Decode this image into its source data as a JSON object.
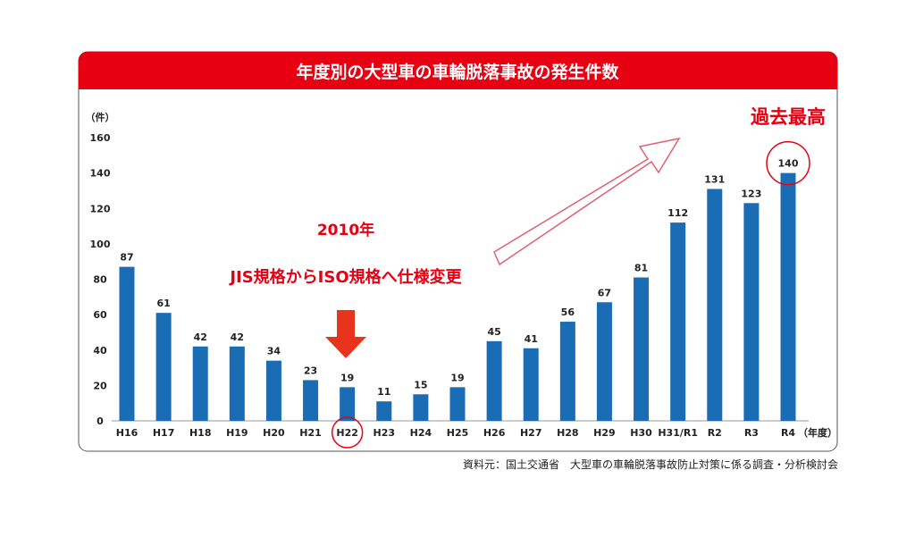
{
  "chart_data": {
    "type": "bar",
    "title": "年度別の大型車の車輪脱落事故の発生件数",
    "ylabel": "（件）",
    "xlabel": "（年度）",
    "ylim": [
      0,
      160
    ],
    "yticks": [
      0,
      20,
      40,
      60,
      80,
      100,
      120,
      140,
      160
    ],
    "grid": false,
    "categories": [
      "H16",
      "H17",
      "H18",
      "H19",
      "H20",
      "H21",
      "H22",
      "H23",
      "H24",
      "H25",
      "H26",
      "H27",
      "H28",
      "H29",
      "H30",
      "H31/R1",
      "R2",
      "R3",
      "R4"
    ],
    "values": [
      87,
      61,
      42,
      42,
      34,
      23,
      19,
      11,
      15,
      19,
      45,
      41,
      56,
      67,
      81,
      112,
      131,
      123,
      140
    ],
    "bar_color": "#1a6db5",
    "annotations": {
      "year": "2010年",
      "change": "JIS規格からISO規格へ仕様変更",
      "record": "過去最高",
      "highlight_category": "H22",
      "highlight_value_category": "R4"
    },
    "source": "資料元：国土交通省　大型車の車輪脱落事故防止対策に係る調査・分析検討会",
    "colors": {
      "header": "#e60012",
      "annotation": "#e60012",
      "bar": "#1a6db5"
    }
  }
}
